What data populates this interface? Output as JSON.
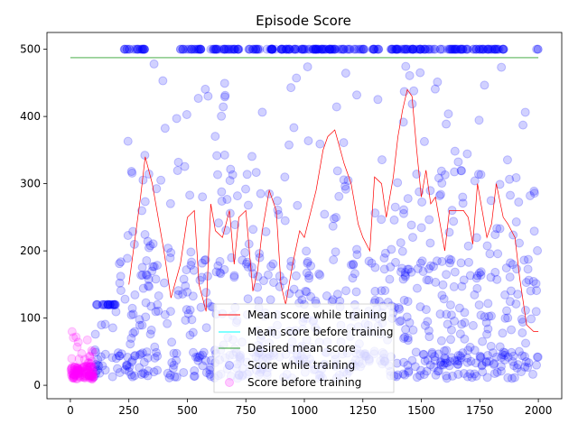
{
  "chart_data": {
    "type": "scatter",
    "title": "Episode Score",
    "xlabel": "",
    "ylabel": "",
    "xlim": [
      -100,
      2100
    ],
    "ylim": [
      -20,
      525
    ],
    "x_ticks": [
      0,
      250,
      500,
      750,
      1000,
      1250,
      1500,
      1750,
      2000
    ],
    "y_ticks": [
      0,
      100,
      200,
      300,
      400,
      500
    ],
    "grid": false,
    "legend_position": "lower-center",
    "series": [
      {
        "name": "Mean score while training",
        "kind": "line",
        "color": "#ff0000",
        "x": [
          0,
          100,
          200,
          250,
          300,
          320,
          350,
          400,
          430,
          470,
          500,
          530,
          550,
          580,
          600,
          620,
          650,
          680,
          700,
          720,
          750,
          780,
          800,
          820,
          850,
          880,
          900,
          920,
          950,
          980,
          1000,
          1050,
          1080,
          1100,
          1130,
          1150,
          1170,
          1200,
          1230,
          1250,
          1280,
          1300,
          1330,
          1350,
          1380,
          1400,
          1420,
          1440,
          1460,
          1480,
          1500,
          1520,
          1540,
          1560,
          1580,
          1600,
          1620,
          1650,
          1680,
          1700,
          1720,
          1740,
          1760,
          1780,
          1800,
          1820,
          1850,
          1870,
          1900,
          1920,
          1950,
          1980,
          2000
        ],
        "y": [
          null,
          null,
          null,
          150,
          280,
          340,
          300,
          200,
          130,
          180,
          250,
          260,
          150,
          110,
          270,
          230,
          220,
          260,
          180,
          250,
          260,
          140,
          170,
          230,
          290,
          260,
          150,
          120,
          180,
          230,
          220,
          290,
          350,
          370,
          380,
          355,
          330,
          300,
          240,
          220,
          200,
          310,
          300,
          250,
          310,
          370,
          410,
          440,
          430,
          350,
          280,
          320,
          270,
          280,
          240,
          200,
          260,
          260,
          260,
          250,
          210,
          300,
          260,
          220,
          240,
          300,
          250,
          240,
          220,
          160,
          90,
          80,
          80
        ]
      },
      {
        "name": "Mean score before training",
        "kind": "line",
        "color": "#00ffff",
        "x": [],
        "y": []
      },
      {
        "name": "Desired mean score",
        "kind": "line",
        "color": "#2ca02c",
        "x": [
          0,
          2000
        ],
        "y": [
          487.5,
          487.5
        ]
      },
      {
        "name": "Score while training",
        "kind": "scatter",
        "color": "#0000ff",
        "x_range": [
          100,
          2000
        ],
        "y_range": [
          10,
          500
        ],
        "cap_value": 500
      },
      {
        "name": "Score before training",
        "kind": "scatter",
        "color": "#ff00ff",
        "x_range": [
          0,
          100
        ],
        "y_range": [
          9,
          80
        ]
      }
    ]
  }
}
